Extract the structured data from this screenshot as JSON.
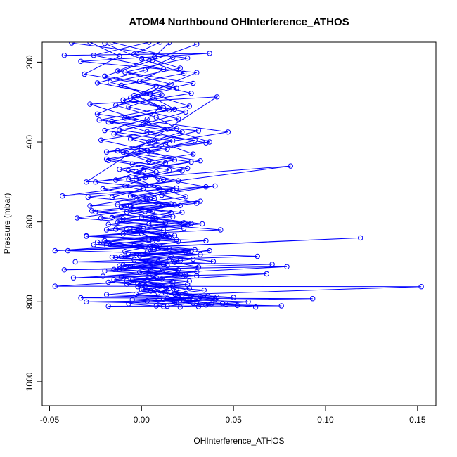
{
  "chart_data": {
    "type": "line",
    "title": "ATOM4 Northbound OHInterference_ATHOS",
    "xlabel": "OHInterference_ATHOS",
    "ylabel": "Pressure (mbar)",
    "xlim": [
      -0.054,
      0.16
    ],
    "ylim": [
      1060,
      150
    ],
    "y_inverted": true,
    "x_ticks": [
      -0.05,
      0.0,
      0.05,
      0.1,
      0.15
    ],
    "x_tick_labels": [
      "-0.05",
      "0.00",
      "0.05",
      "0.10",
      "0.15"
    ],
    "y_ticks": [
      200,
      400,
      600,
      800,
      1000
    ],
    "y_tick_labels": [
      "200",
      "400",
      "600",
      "800",
      "1000"
    ],
    "grid": false,
    "legend": "none",
    "series_color": "#0000ff",
    "markers": "open-circle",
    "series": [
      {
        "x": [
          -0.028,
          -0.012,
          -0.031,
          0.008,
          -0.006,
          0.015,
          -0.018,
          0.022,
          0.004,
          -0.01,
          0.027,
          0.001,
          -0.014,
          0.019,
          -0.003,
          0.011,
          -0.025,
          0.006,
          0.033,
          -0.008,
          0.013,
          -0.021,
          0.002,
          0.024,
          -0.016,
          0.009,
          -0.005,
          0.03,
          -0.011,
          0.017,
          -0.002,
          0.007,
          -0.019,
          0.028,
          0.003,
          -0.007,
          0.012
        ],
        "y": [
          150,
          185,
          230,
          260,
          290,
          320,
          350,
          375,
          400,
          425,
          450,
          470,
          495,
          515,
          540,
          560,
          575,
          590,
          605,
          620,
          635,
          650,
          662,
          675,
          688,
          700,
          712,
          725,
          738,
          750,
          762,
          772,
          782,
          790,
          798,
          805,
          812
        ]
      },
      {
        "x": [
          0.01,
          -0.004,
          0.021,
          -0.017,
          0.005,
          0.026,
          -0.009,
          0.014,
          -0.022,
          0.003,
          0.018,
          -0.012,
          0.009,
          0.035,
          -0.006,
          0.016,
          -0.027,
          0.0,
          0.023,
          -0.014,
          0.011,
          0.004,
          -0.019,
          0.029,
          -0.003,
          0.015,
          -0.01,
          0.02,
          0.006,
          -0.015,
          0.025,
          0.001,
          0.013,
          0.032,
          -0.005,
          0.019,
          0.008
        ],
        "y": [
          150,
          180,
          215,
          250,
          280,
          310,
          340,
          368,
          395,
          420,
          445,
          468,
          490,
          512,
          535,
          555,
          572,
          588,
          602,
          618,
          632,
          645,
          658,
          670,
          683,
          695,
          708,
          720,
          733,
          745,
          757,
          768,
          778,
          787,
          795,
          802,
          810
        ]
      },
      {
        "x": [
          -0.038,
          0.025,
          -0.009,
          0.016,
          -0.002,
          0.012,
          -0.023,
          0.031,
          0.007,
          -0.013,
          0.004,
          0.022,
          -0.007,
          0.01,
          -0.029,
          0.018,
          0.002,
          -0.016,
          0.027,
          -0.004,
          0.014,
          -0.02,
          0.008,
          0.037,
          -0.001,
          0.021,
          -0.012,
          0.005,
          0.03,
          -0.008,
          0.017,
          0.0,
          0.024,
          0.041,
          0.009,
          0.028,
          0.014
        ],
        "y": [
          152,
          190,
          225,
          255,
          285,
          315,
          345,
          372,
          398,
          422,
          448,
          472,
          493,
          518,
          538,
          558,
          574,
          589,
          604,
          619,
          633,
          647,
          660,
          672,
          685,
          697,
          710,
          722,
          735,
          747,
          759,
          770,
          779,
          788,
          796,
          803,
          811
        ]
      },
      {
        "x": [
          0.03,
          0.006,
          -0.02,
          0.019,
          -0.01,
          0.024,
          0.001,
          -0.015,
          0.013,
          0.028,
          -0.005,
          0.008,
          -0.025,
          0.017,
          0.003,
          -0.011,
          0.022,
          0.007,
          -0.018,
          0.012,
          -0.03,
          0.02,
          0.005,
          -0.009,
          0.016,
          0.039,
          -0.006,
          0.011,
          -0.021,
          0.026,
          0.002,
          0.034,
          0.018,
          0.05,
          0.023,
          0.044,
          0.031
        ],
        "y": [
          155,
          195,
          235,
          265,
          295,
          325,
          355,
          380,
          405,
          430,
          455,
          475,
          500,
          520,
          542,
          562,
          576,
          591,
          606,
          621,
          636,
          649,
          661,
          674,
          686,
          699,
          711,
          724,
          736,
          748,
          760,
          771,
          780,
          789,
          797,
          804,
          812
        ]
      },
      {
        "x": [
          -0.016,
          0.017,
          0.002,
          -0.024,
          0.011,
          -0.007,
          0.02,
          -0.012,
          0.029,
          0.004,
          -0.018,
          0.015,
          -0.003,
          0.009,
          0.024,
          -0.013,
          0.006,
          -0.022,
          0.013,
          0.001,
          -0.01,
          0.019,
          -0.026,
          0.007,
          0.032,
          -0.004,
          0.012,
          -0.015,
          0.021,
          0.003,
          -0.008,
          0.015,
          0.009,
          0.027,
          0.04,
          0.018,
          0.052
        ],
        "y": [
          150,
          188,
          220,
          252,
          282,
          312,
          342,
          370,
          396,
          424,
          446,
          470,
          492,
          514,
          537,
          557,
          573,
          590,
          603,
          617,
          630,
          644,
          657,
          669,
          682,
          694,
          707,
          719,
          732,
          744,
          756,
          767,
          777,
          786,
          794,
          801,
          809
        ]
      },
      {
        "x": [
          0.004,
          -0.026,
          0.012,
          -0.001,
          0.027,
          -0.014,
          0.008,
          0.019,
          -0.006,
          0.014,
          -0.019,
          0.025,
          0.002,
          -0.009,
          0.011,
          0.03,
          -0.004,
          0.017,
          -0.013,
          0.023,
          0.0,
          0.009,
          -0.017,
          0.015,
          -0.007,
          0.028,
          0.006,
          -0.012,
          0.019,
          0.011,
          -0.002,
          0.026,
          0.016,
          0.036,
          0.012,
          0.058,
          0.035
        ],
        "y": [
          150,
          183,
          218,
          248,
          278,
          308,
          338,
          366,
          392,
          418,
          443,
          466,
          489,
          510,
          533,
          553,
          570,
          587,
          601,
          616,
          629,
          643,
          656,
          668,
          681,
          693,
          706,
          718,
          731,
          743,
          755,
          766,
          776,
          785,
          793,
          800,
          808
        ]
      },
      {
        "x": [
          -0.02,
          0.0,
          0.023,
          -0.011,
          0.006,
          0.018,
          -0.016,
          0.003,
          0.035,
          -0.008,
          0.013,
          -0.003,
          0.02,
          -0.021,
          0.007,
          -0.006,
          0.016,
          -0.01,
          0.025,
          -0.002,
          0.015,
          -0.024,
          0.01,
          0.003,
          -0.014,
          0.018,
          0.031,
          -0.001,
          0.008,
          -0.018,
          0.013,
          0.005,
          0.022,
          0.014,
          0.03,
          0.046,
          0.062
        ],
        "y": [
          153,
          192,
          228,
          258,
          288,
          318,
          348,
          374,
          402,
          428,
          452,
          474,
          497,
          517,
          541,
          561,
          577,
          592,
          607,
          622,
          637,
          651,
          663,
          676,
          689,
          701,
          713,
          726,
          739,
          751,
          763,
          773,
          783,
          791,
          799,
          806,
          813
        ]
      },
      {
        "x": [
          0.015,
          0.007,
          -0.013,
          0.028,
          -0.004,
          0.01,
          0.003,
          -0.02,
          0.017,
          -0.002,
          0.032,
          -0.007,
          0.012,
          0.001,
          -0.016,
          0.021,
          -0.008,
          0.008,
          0.004,
          -0.019,
          0.018,
          0.006,
          -0.004,
          0.027,
          -0.011,
          0.002,
          0.014,
          -0.02,
          0.024,
          -0.005,
          0.009,
          0.019,
          -0.003,
          0.02,
          0.026,
          0.038,
          0.021
        ],
        "y": [
          151,
          187,
          222,
          253,
          283,
          313,
          343,
          371,
          397,
          423,
          447,
          471,
          494,
          516,
          539,
          559,
          575,
          591,
          605,
          620,
          634,
          648,
          659,
          673,
          687,
          698,
          709,
          723,
          734,
          746,
          758,
          769,
          781,
          790,
          798,
          805,
          813
        ]
      },
      {
        "x": [
          -0.042,
          0.037,
          -0.033,
          0.03,
          -0.024,
          0.047,
          -0.019,
          0.037,
          -0.028,
          0.041,
          -0.03,
          0.081,
          -0.043,
          0.04,
          -0.028,
          0.032,
          -0.035,
          0.043,
          -0.03,
          0.035,
          -0.047,
          0.119,
          -0.04,
          0.063,
          -0.036,
          0.071,
          -0.042,
          0.079,
          -0.037,
          0.068,
          -0.047,
          0.152,
          -0.033,
          0.093,
          -0.03,
          0.076,
          -0.018
        ],
        "y": [
          183,
          178,
          198,
          226,
          330,
          375,
          425,
          400,
          305,
          287,
          500,
          460,
          535,
          510,
          560,
          548,
          590,
          620,
          635,
          647,
          672,
          640,
          672,
          686,
          700,
          706,
          720,
          712,
          740,
          730,
          761,
          762,
          790,
          792,
          800,
          810,
          811
        ]
      }
    ]
  }
}
